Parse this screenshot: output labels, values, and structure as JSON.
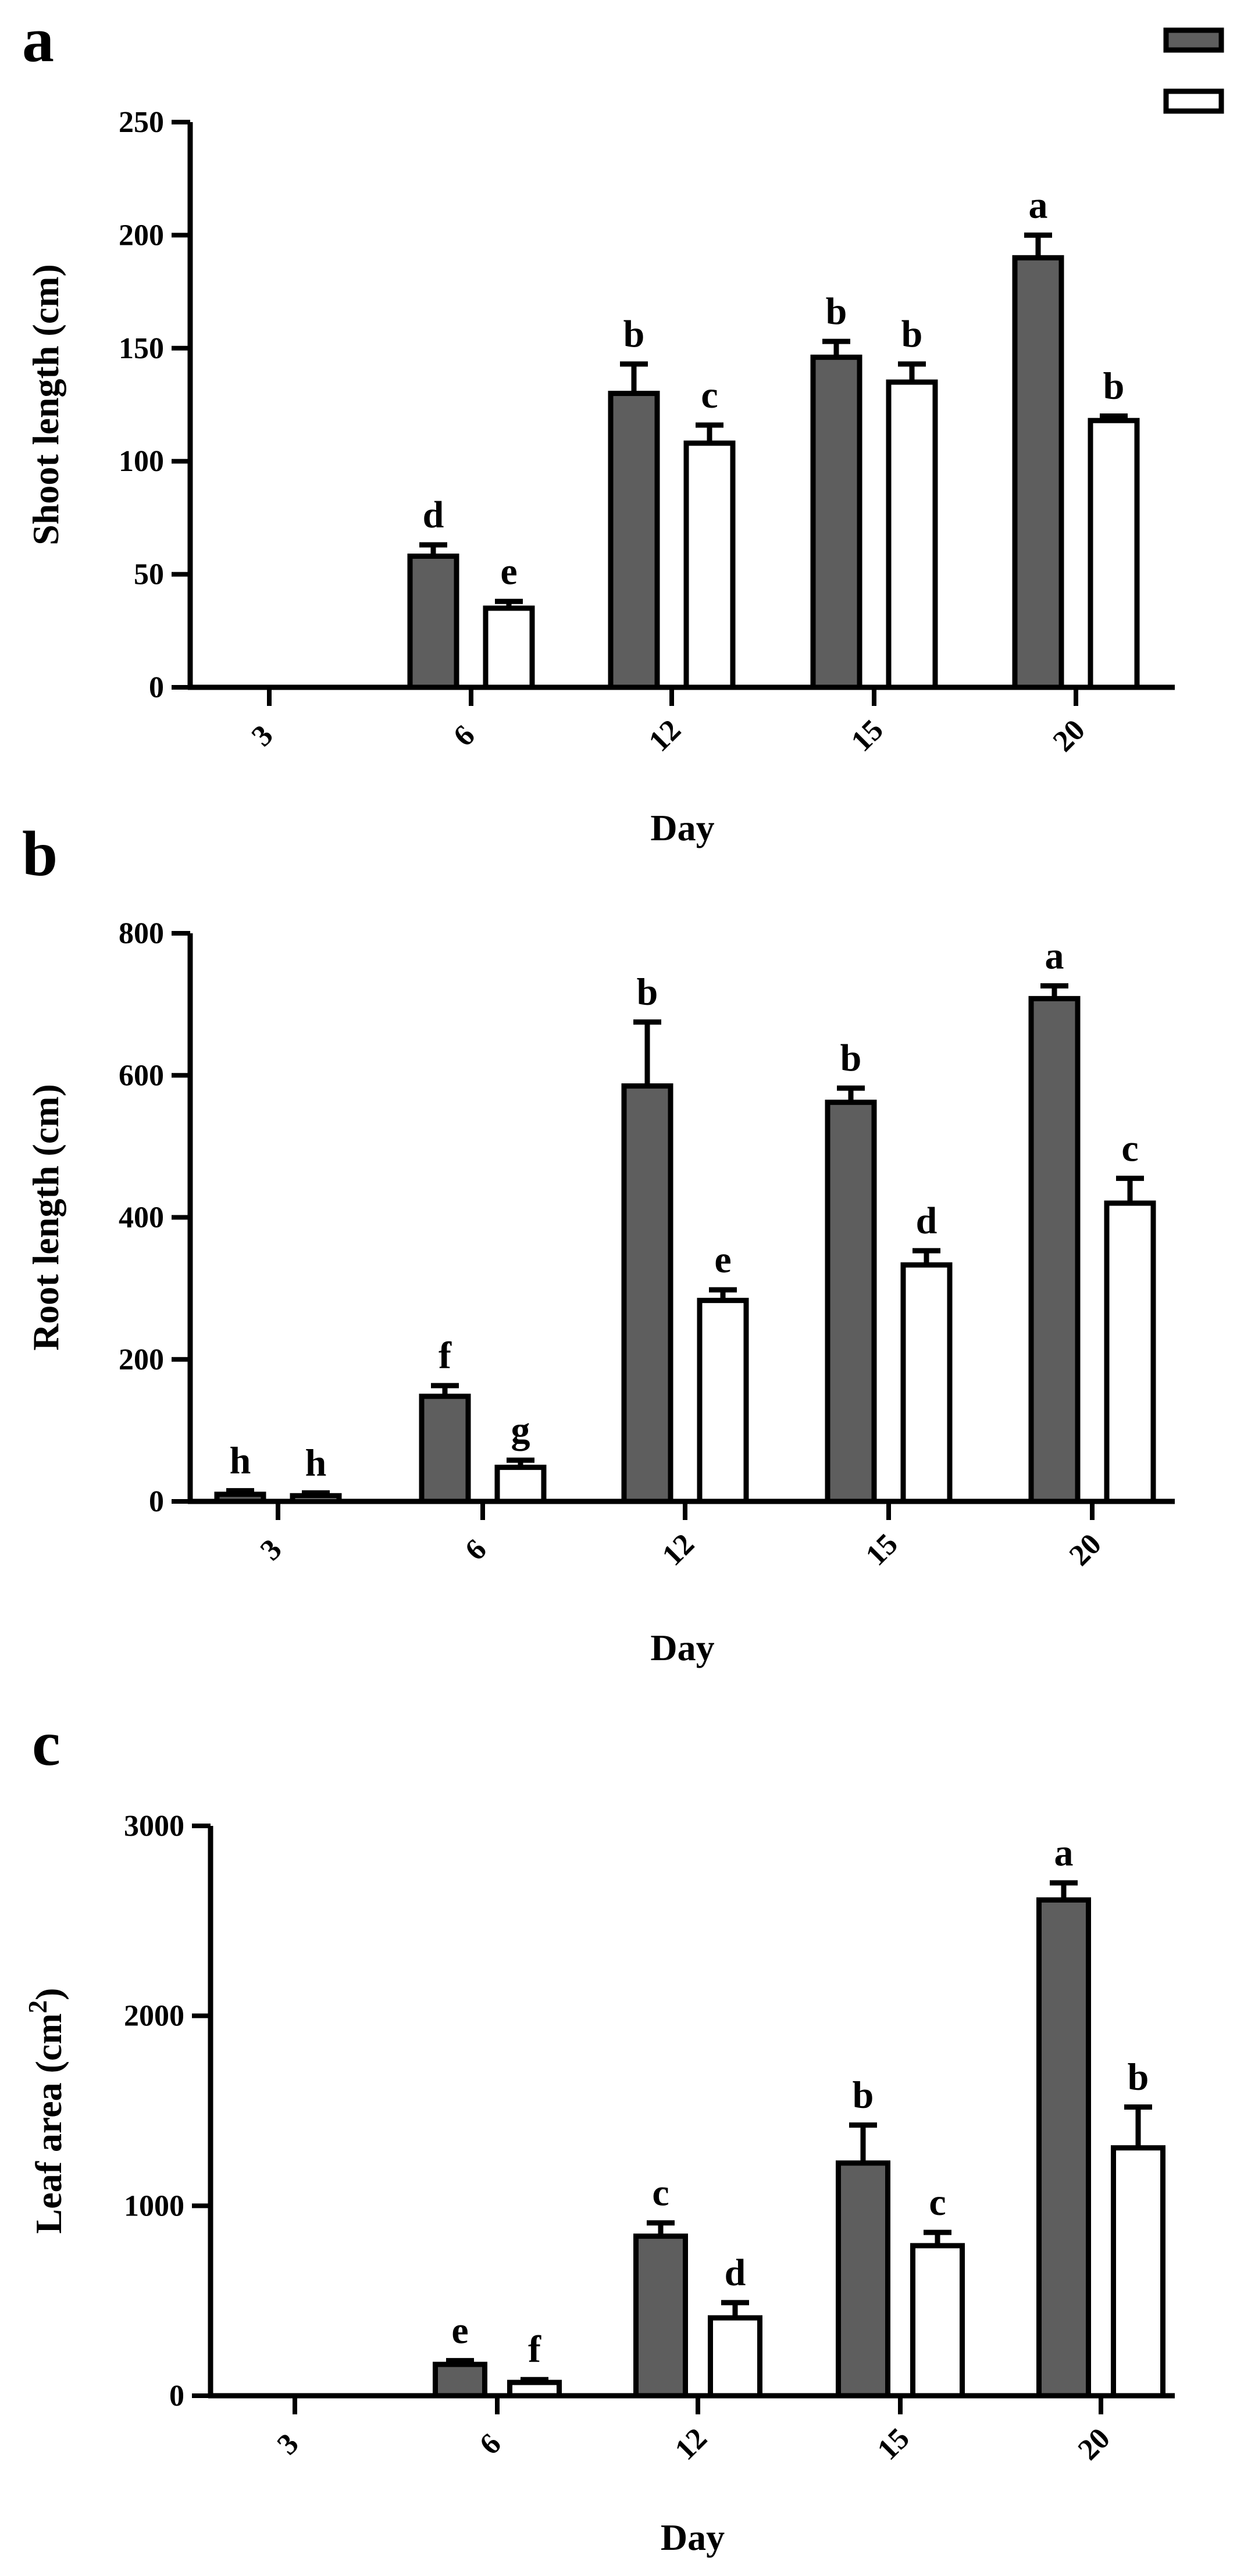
{
  "legend": {
    "series": [
      {
        "name": "",
        "fill": "#5e5e5e"
      },
      {
        "name": "",
        "fill": "#ffffff"
      }
    ]
  },
  "colors": {
    "dark_bar": "#5e5e5e",
    "light_bar": "#ffffff",
    "stroke": "#000000"
  },
  "chart_data": [
    {
      "type": "bar",
      "panel_label": "a",
      "title": "",
      "xlabel": "Day",
      "ylabel": "Shoot length (cm)",
      "categories": [
        "3",
        "6",
        "12",
        "15",
        "20"
      ],
      "yticks": [
        0,
        50,
        100,
        150,
        200,
        250
      ],
      "ylim": [
        0,
        250
      ],
      "series": [
        {
          "name": "",
          "values": [
            0,
            58,
            130,
            146,
            190
          ],
          "errors": [
            0,
            5,
            13,
            7,
            10
          ],
          "letters": [
            "",
            "d",
            "b",
            "b",
            "a"
          ]
        },
        {
          "name": "",
          "values": [
            0,
            35,
            108,
            135,
            118
          ],
          "errors": [
            0,
            3,
            8,
            8,
            2
          ],
          "letters": [
            "",
            "e",
            "c",
            "b",
            "b"
          ]
        }
      ]
    },
    {
      "type": "bar",
      "panel_label": "b",
      "title": "",
      "xlabel": "Day",
      "ylabel": "Root length (cm)",
      "categories": [
        "3",
        "6",
        "12",
        "15",
        "20"
      ],
      "yticks": [
        0,
        200,
        400,
        600,
        800
      ],
      "ylim": [
        0,
        800
      ],
      "series": [
        {
          "name": "",
          "values": [
            10,
            148,
            585,
            562,
            708
          ],
          "errors": [
            5,
            15,
            90,
            20,
            18
          ],
          "letters": [
            "h",
            "f",
            "b",
            "b",
            "a"
          ]
        },
        {
          "name": "",
          "values": [
            8,
            48,
            283,
            333,
            420
          ],
          "errors": [
            4,
            10,
            15,
            20,
            35
          ],
          "letters": [
            "h",
            "g",
            "e",
            "d",
            "c"
          ]
        }
      ]
    },
    {
      "type": "bar",
      "panel_label": "c",
      "title": "",
      "xlabel": "Day",
      "ylabel": "Leaf area (cm2)",
      "ylabel_main": "Leaf area (cm",
      "ylabel_sup": "2",
      "ylabel_close": ")",
      "categories": [
        "3",
        "6",
        "12",
        "15",
        "20"
      ],
      "yticks": [
        0,
        1000,
        2000,
        3000
      ],
      "ylim": [
        0,
        3000
      ],
      "series": [
        {
          "name": "",
          "values": [
            0,
            165,
            840,
            1225,
            2610
          ],
          "errors": [
            0,
            20,
            70,
            200,
            90
          ],
          "letters": [
            "",
            "e",
            "c",
            "b",
            "a"
          ]
        },
        {
          "name": "",
          "values": [
            0,
            70,
            410,
            790,
            1305
          ],
          "errors": [
            0,
            15,
            80,
            70,
            215
          ],
          "letters": [
            "",
            "f",
            "d",
            "c",
            "b"
          ]
        }
      ]
    }
  ]
}
